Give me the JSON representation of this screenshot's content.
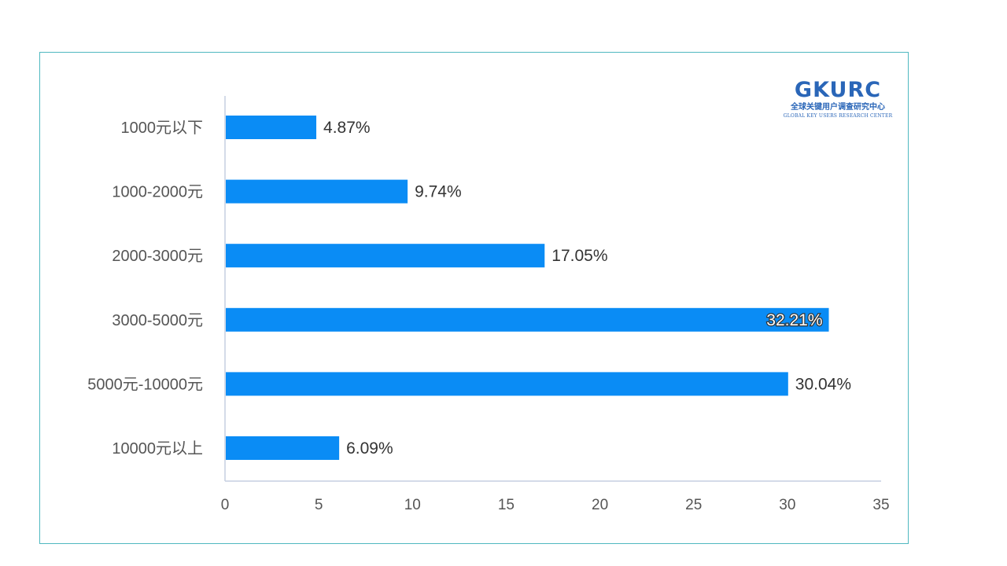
{
  "logo": {
    "text": "GKURC",
    "cn": "全球关键用户调查研究中心",
    "en": "GLOBAL KEY USERS RESEARCH CENTER",
    "color": "#2a66b8"
  },
  "chart_data": {
    "type": "bar",
    "orientation": "horizontal",
    "categories": [
      "1000元以下",
      "1000-2000元",
      "2000-3000元",
      "3000-5000元",
      "5000元-10000元",
      "10000元以上"
    ],
    "values": [
      4.87,
      9.74,
      17.05,
      32.21,
      30.04,
      6.09
    ],
    "value_labels": [
      "4.87%",
      "9.74%",
      "17.05%",
      "32.21%",
      "30.04%",
      "6.09%"
    ],
    "xlim": [
      0,
      35
    ],
    "xticks": [
      "0",
      "5",
      "10",
      "15",
      "20",
      "25",
      "30",
      "35"
    ],
    "bar_color": "#0a8cf5",
    "grid": false,
    "legend": "none"
  }
}
